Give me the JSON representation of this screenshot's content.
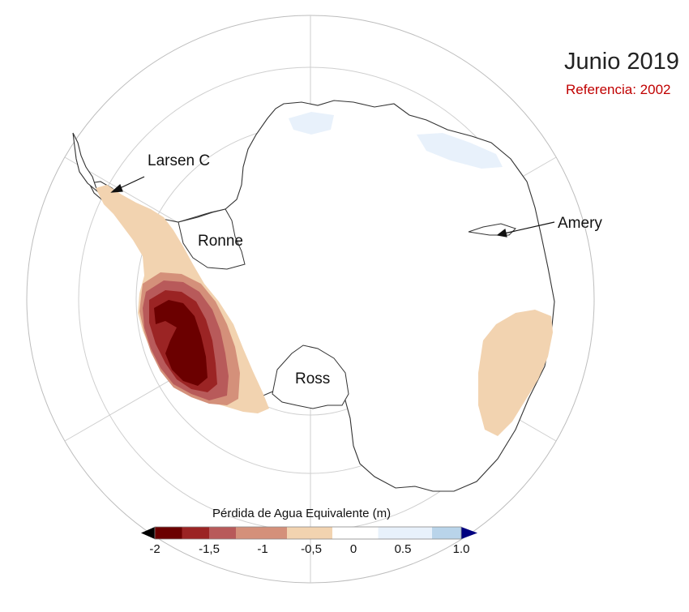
{
  "title": "Junio 2019",
  "subtitle": "Referencia: 2002",
  "places": {
    "larsen": "Larsen C",
    "ronne": "Ronne",
    "ross": "Ross",
    "amery": "Amery"
  },
  "legend": {
    "title": "Pérdida de Agua Equivalente (m)",
    "ticks": [
      "-2",
      "-1,5",
      "-1",
      "-0,5",
      "0",
      "0.5",
      "1.0"
    ],
    "bins": [
      {
        "from": -2.0,
        "to": -1.75,
        "color": "#6b0000"
      },
      {
        "from": -1.75,
        "to": -1.5,
        "color": "#9b2424"
      },
      {
        "from": -1.5,
        "to": -1.25,
        "color": "#b85a5a"
      },
      {
        "from": -1.25,
        "to": -0.75,
        "color": "#d4907a"
      },
      {
        "from": -0.75,
        "to": -0.25,
        "color": "#f2d3b0"
      },
      {
        "from": -0.25,
        "to": 0.25,
        "color": "#ffffff"
      },
      {
        "from": 0.25,
        "to": 0.75,
        "color": "#e8f1fb"
      },
      {
        "from": 0.75,
        "to": 1.0,
        "color": "#b9d4ea"
      }
    ],
    "under_color": "#000000",
    "over_color": "#000080"
  }
}
